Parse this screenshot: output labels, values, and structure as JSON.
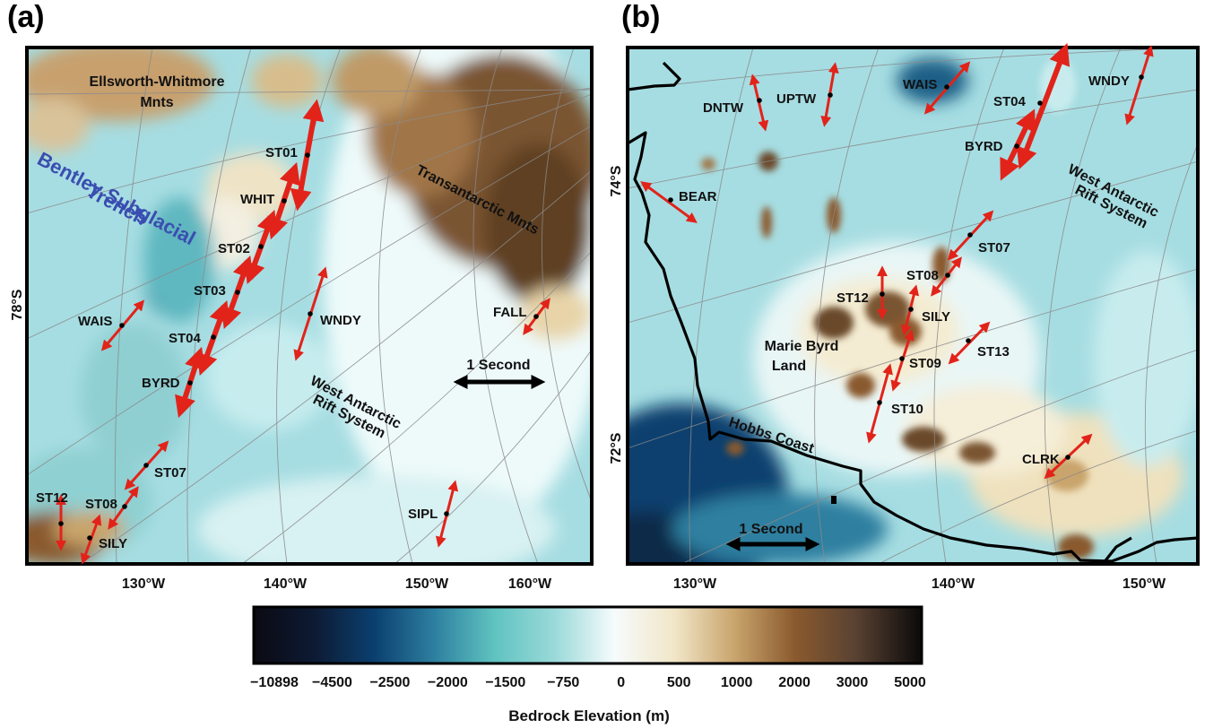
{
  "panels": [
    {
      "letter": "(a)",
      "regions": {
        "ellsworth_line1": "Ellsworth-Whitmore",
        "ellsworth_line2": "Mnts",
        "bentley_line1": "Bentley Subglacial",
        "bentley_line2": "Trench",
        "transantarctic": "Transantarctic Mnts",
        "wars_line1": "West Antarctic",
        "wars_line2": "Rift System"
      },
      "lat_label": "78°S",
      "lon_labels": [
        "130°W",
        "140°W",
        "150°W",
        "160°W"
      ],
      "scale_label": "1 Second",
      "stations": [
        {
          "name": "ST01",
          "strength": "large"
        },
        {
          "name": "WHIT",
          "strength": "large"
        },
        {
          "name": "ST02",
          "strength": "large"
        },
        {
          "name": "ST03",
          "strength": "large"
        },
        {
          "name": "ST04",
          "strength": "large"
        },
        {
          "name": "BYRD",
          "strength": "large"
        },
        {
          "name": "WAIS",
          "strength": "small"
        },
        {
          "name": "WNDY",
          "strength": "small"
        },
        {
          "name": "FALL",
          "strength": "small"
        },
        {
          "name": "ST07",
          "strength": "small"
        },
        {
          "name": "ST08",
          "strength": "small"
        },
        {
          "name": "ST12",
          "strength": "small"
        },
        {
          "name": "SILY",
          "strength": "small"
        },
        {
          "name": "SIPL",
          "strength": "small"
        }
      ]
    },
    {
      "letter": "(b)",
      "regions": {
        "wars_line1": "West Antarctic",
        "wars_line2": "Rift System",
        "mbl_line1": "Marie Byrd",
        "mbl_line2": "Land",
        "hobbs": "Hobbs Coast"
      },
      "lat_labels": [
        "74°S",
        "72°S"
      ],
      "lon_labels": [
        "130°W",
        "140°W",
        "150°W"
      ],
      "scale_label": "1 Second",
      "stations": [
        {
          "name": "DNTW",
          "strength": "small"
        },
        {
          "name": "UPTW",
          "strength": "small"
        },
        {
          "name": "WAIS",
          "strength": "small"
        },
        {
          "name": "ST04",
          "strength": "large"
        },
        {
          "name": "BYRD",
          "strength": "large"
        },
        {
          "name": "WNDY",
          "strength": "small"
        },
        {
          "name": "BEAR",
          "strength": "small"
        },
        {
          "name": "ST07",
          "strength": "small"
        },
        {
          "name": "ST08",
          "strength": "small"
        },
        {
          "name": "ST12",
          "strength": "small"
        },
        {
          "name": "SILY",
          "strength": "small"
        },
        {
          "name": "ST13",
          "strength": "small"
        },
        {
          "name": "ST09",
          "strength": "small"
        },
        {
          "name": "ST10",
          "strength": "small"
        },
        {
          "name": "CLRK",
          "strength": "small"
        }
      ]
    }
  ],
  "colorbar": {
    "title": "Bedrock Elevation (m)",
    "ticks": [
      "−10898",
      "−4500",
      "−2500",
      "−2000",
      "−1500",
      "−750",
      "0",
      "500",
      "1000",
      "2000",
      "3000",
      "5000"
    ],
    "colors": {
      "deep": "#0b0a12",
      "abyss": "#0b3f6e",
      "ocean": "#2d7fa0",
      "shelf": "#5fc3c0",
      "low": "#b8e6ea",
      "zero": "#f6fbfc",
      "plain": "#f1e6c8",
      "hill": "#c9a46c",
      "mountain": "#8a5a2e",
      "peak": "#4a3526",
      "summit": "#0a0a0a"
    }
  },
  "arrow_color": "#e2231a"
}
